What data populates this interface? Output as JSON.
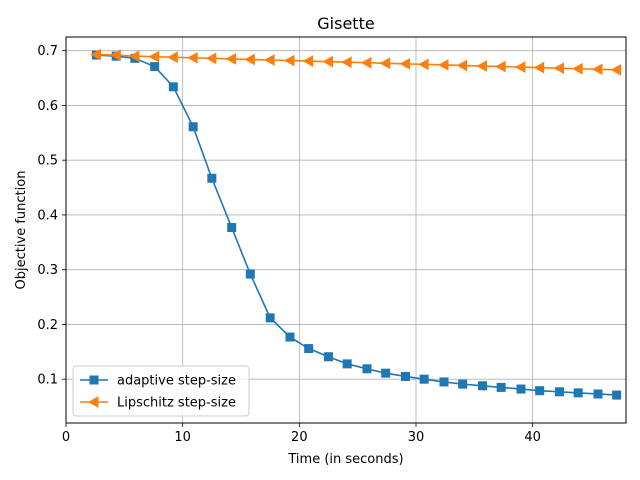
{
  "chart_data": {
    "type": "line",
    "title": "Gisette",
    "xlabel": "Time (in seconds)",
    "ylabel": "Objective function",
    "xlim": [
      0,
      48
    ],
    "ylim": [
      0.02,
      0.725
    ],
    "xticks": [
      0,
      10,
      20,
      30,
      40
    ],
    "yticks": [
      0.1,
      0.2,
      0.3,
      0.4,
      0.5,
      0.6,
      0.7
    ],
    "grid": true,
    "legend_position": "lower-left",
    "series": [
      {
        "name": "adaptive step-size",
        "color": "#1f77b4",
        "marker": "square",
        "x": [
          2.6,
          4.3,
          5.9,
          7.6,
          9.2,
          10.9,
          12.5,
          14.2,
          15.8,
          17.5,
          19.2,
          20.8,
          22.5,
          24.1,
          25.8,
          27.4,
          29.1,
          30.7,
          32.4,
          34.0,
          35.7,
          37.3,
          39.0,
          40.6,
          42.3,
          43.9,
          45.6,
          47.2
        ],
        "y": [
          0.692,
          0.69,
          0.686,
          0.671,
          0.634,
          0.561,
          0.467,
          0.377,
          0.292,
          0.212,
          0.177,
          0.156,
          0.141,
          0.128,
          0.119,
          0.111,
          0.105,
          0.1,
          0.095,
          0.091,
          0.088,
          0.085,
          0.082,
          0.079,
          0.077,
          0.075,
          0.073,
          0.071
        ]
      },
      {
        "name": "Lipschitz step-size",
        "color": "#ff7f0e",
        "marker": "triangle-left",
        "x": [
          2.6,
          4.3,
          5.9,
          7.6,
          9.2,
          10.9,
          12.5,
          14.2,
          15.8,
          17.5,
          19.2,
          20.8,
          22.5,
          24.1,
          25.8,
          27.4,
          29.1,
          30.7,
          32.4,
          34.0,
          35.7,
          37.3,
          39.0,
          40.6,
          42.3,
          43.9,
          45.6,
          47.2
        ],
        "y": [
          0.693,
          0.692,
          0.69,
          0.689,
          0.688,
          0.687,
          0.686,
          0.685,
          0.684,
          0.683,
          0.682,
          0.681,
          0.68,
          0.679,
          0.678,
          0.677,
          0.676,
          0.675,
          0.674,
          0.673,
          0.672,
          0.671,
          0.67,
          0.669,
          0.668,
          0.667,
          0.666,
          0.665
        ]
      }
    ]
  }
}
